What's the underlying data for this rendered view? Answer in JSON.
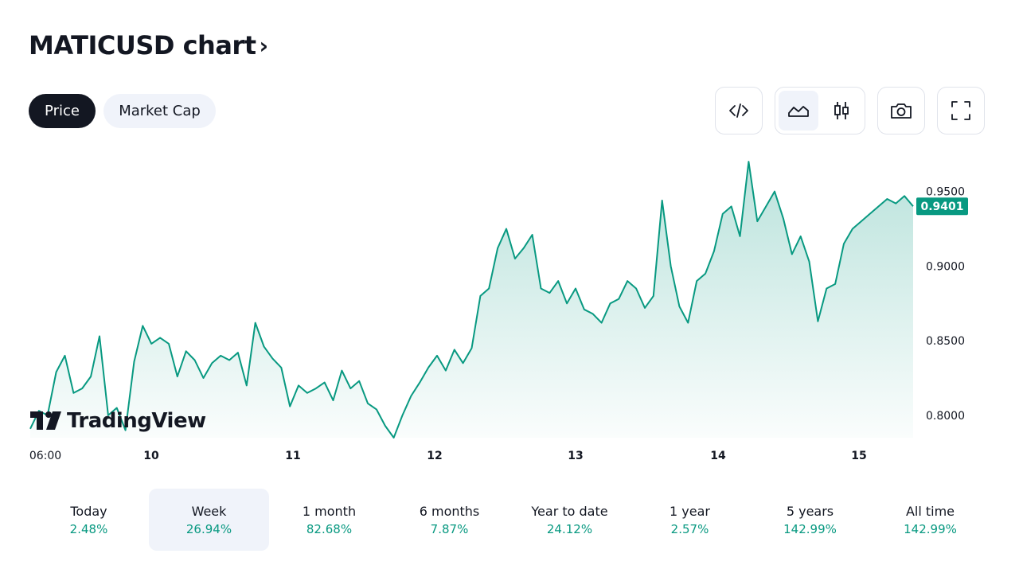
{
  "header": {
    "title": "MATICUSD chart",
    "chevron": "›"
  },
  "toggles": [
    {
      "label": "Price",
      "active": true
    },
    {
      "label": "Market Cap",
      "active": false
    }
  ],
  "toolbar": {
    "icons": [
      "embed-code-icon",
      "area-chart-icon",
      "candles-icon",
      "camera-icon",
      "fullscreen-icon"
    ],
    "selected_style": "area"
  },
  "watermark": {
    "text": "TradingView"
  },
  "colors": {
    "accent": "#089981",
    "text": "#131722",
    "muted_bg": "#f0f3fa"
  },
  "chart_data": {
    "type": "area",
    "symbol": "MATICUSD",
    "x_ticks": [
      "06:00",
      "10",
      "11",
      "12",
      "13",
      "14",
      "15"
    ],
    "y_ticks": [
      "0.9500",
      "0.9000",
      "0.8500",
      "0.8000"
    ],
    "ylim": [
      0.785,
      0.977
    ],
    "last_price": "0.9401",
    "grid": false,
    "series": [
      {
        "x": [
          0,
          0.25,
          0.5,
          0.75,
          1,
          1.25,
          1.5,
          1.75,
          2,
          2.25,
          2.5,
          2.75,
          3,
          3.25,
          3.5,
          3.75,
          4,
          4.25,
          4.5,
          4.75,
          5,
          5.25,
          5.5,
          5.75,
          6,
          6.25,
          6.5,
          6.75,
          7,
          7.25,
          7.5,
          7.75,
          8,
          8.25,
          8.5,
          8.75,
          9,
          9.25,
          9.5,
          9.75,
          10,
          10.25,
          10.5,
          10.75,
          11,
          11.25,
          11.5,
          11.75,
          12,
          12.25,
          12.5,
          12.75,
          13,
          13.25,
          13.5,
          13.75,
          14,
          14.25,
          14.5,
          14.75,
          15,
          15.25,
          15.5,
          15.75,
          16,
          16.25,
          16.5,
          16.75,
          17,
          17.25,
          17.5,
          17.75,
          18,
          18.25,
          18.5,
          18.75,
          19,
          19.25,
          19.5,
          19.75,
          20,
          20.25,
          20.5,
          20.75,
          21,
          21.25,
          21.5,
          21.75,
          22,
          22.25,
          22.5,
          22.75,
          23,
          23.25,
          23.5,
          23.75,
          24,
          24.25,
          24.5,
          24.75,
          25,
          25.25,
          25.5
        ],
        "values": [
          0.791,
          0.803,
          0.8,
          0.829,
          0.84,
          0.815,
          0.818,
          0.826,
          0.853,
          0.8,
          0.805,
          0.79,
          0.836,
          0.86,
          0.848,
          0.852,
          0.848,
          0.826,
          0.843,
          0.837,
          0.825,
          0.835,
          0.84,
          0.837,
          0.842,
          0.82,
          0.862,
          0.846,
          0.838,
          0.832,
          0.806,
          0.82,
          0.815,
          0.818,
          0.822,
          0.81,
          0.83,
          0.818,
          0.823,
          0.808,
          0.804,
          0.793,
          0.785,
          0.8,
          0.813,
          0.822,
          0.832,
          0.84,
          0.83,
          0.844,
          0.835,
          0.845,
          0.88,
          0.885,
          0.912,
          0.925,
          0.905,
          0.912,
          0.921,
          0.885,
          0.882,
          0.89,
          0.875,
          0.885,
          0.871,
          0.868,
          0.862,
          0.875,
          0.878,
          0.89,
          0.885,
          0.872,
          0.88,
          0.944,
          0.9,
          0.873,
          0.862,
          0.89,
          0.895,
          0.91,
          0.935,
          0.94,
          0.92,
          0.97,
          0.93,
          0.94,
          0.95,
          0.932,
          0.908,
          0.92,
          0.903,
          0.863,
          0.885,
          0.888,
          0.915,
          0.925,
          0.93,
          0.935,
          0.94,
          0.945,
          0.942,
          0.947,
          0.9401
        ]
      }
    ]
  },
  "periods": [
    {
      "label": "Today",
      "value": "2.48%",
      "selected": false
    },
    {
      "label": "Week",
      "value": "26.94%",
      "selected": true
    },
    {
      "label": "1 month",
      "value": "82.68%",
      "selected": false
    },
    {
      "label": "6 months",
      "value": "7.87%",
      "selected": false
    },
    {
      "label": "Year to date",
      "value": "24.12%",
      "selected": false
    },
    {
      "label": "1 year",
      "value": "2.57%",
      "selected": false
    },
    {
      "label": "5 years",
      "value": "142.99%",
      "selected": false
    },
    {
      "label": "All time",
      "value": "142.99%",
      "selected": false
    }
  ]
}
